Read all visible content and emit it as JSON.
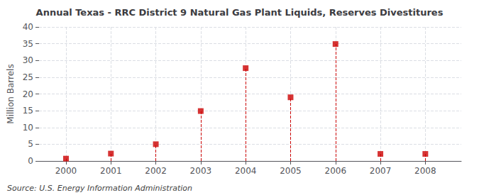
{
  "chart_data": {
    "type": "scatter",
    "title": "Annual Texas - RRC District 9 Natural Gas Plant Liquids, Reserves Divestitures",
    "ylabel": "Million Barrels",
    "annotations": [
      "Source: U.S. Energy Information Administration"
    ],
    "x": [
      2000,
      2001,
      2002,
      2003,
      2004,
      2005,
      2006,
      2007,
      2008
    ],
    "values": [
      0.7,
      2.2,
      5.0,
      14.9,
      27.7,
      19.0,
      34.9,
      2.1,
      2.1
    ],
    "color": "#cc0000",
    "marker": "square",
    "xlim": [
      1999.4,
      2008.8
    ],
    "xticks": [
      2000,
      2001,
      2002,
      2003,
      2004,
      2005,
      2006,
      2007,
      2008
    ],
    "ylim": [
      0,
      40
    ],
    "yticks": [
      0,
      5,
      10,
      15,
      20,
      25,
      30,
      35,
      40
    ],
    "grid": true
  }
}
